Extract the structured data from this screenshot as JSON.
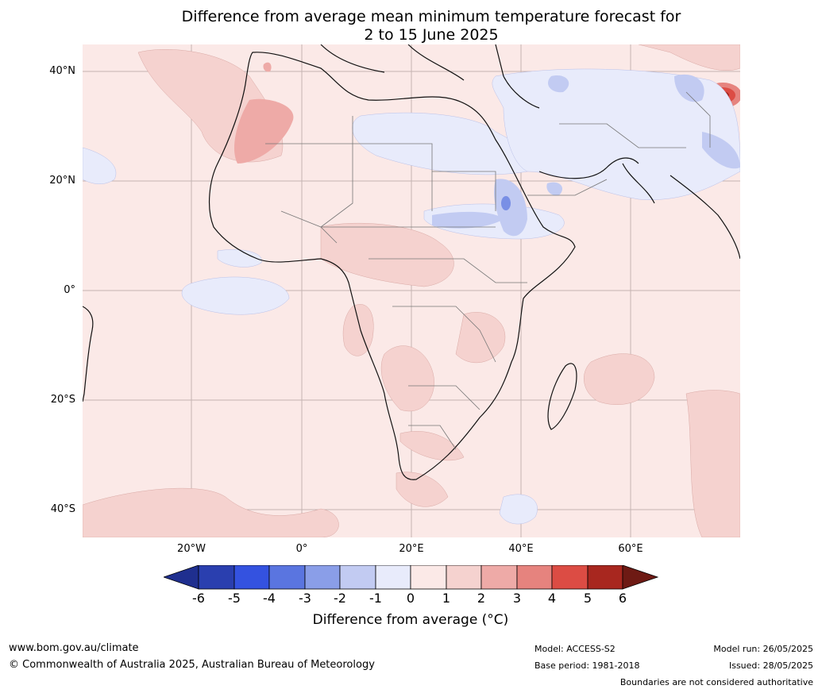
{
  "title_line1": "Difference from average mean minimum temperature forecast for",
  "title_line2": "2 to 15 June 2025",
  "lat_labels": [
    "40°N",
    "20°N",
    "0°",
    "20°S",
    "40°S"
  ],
  "lon_labels": [
    "20°W",
    "0°",
    "20°E",
    "40°E",
    "60°E"
  ],
  "colorbar": {
    "ticks": [
      "-6",
      "-5",
      "-4",
      "-3",
      "-2",
      "-1",
      "0",
      "1",
      "2",
      "3",
      "4",
      "5",
      "6"
    ],
    "label": "Difference from average ($^\\circ$C)",
    "label_display": "Difference from average (°C)",
    "colors": [
      "#1f2f8f",
      "#2a3faf",
      "#3452e0",
      "#5a75e0",
      "#8a9ee8",
      "#c2cbf2",
      "#e8ebfb",
      "#fbe9e7",
      "#f5d2cf",
      "#eeaaa7",
      "#e6837e",
      "#dc4c44",
      "#a8271f",
      "#6e1a14"
    ]
  },
  "footer": {
    "website": "www.bom.gov.au/climate",
    "copyright": "© Commonwealth of Australia 2025, Australian Bureau of Meteorology",
    "model": "Model: ACCESS-S2",
    "base_period": "Base period: 1981-2018",
    "model_run": "Model run: 26/05/2025",
    "issued": "Issued: 28/05/2025",
    "disclaimer": "Boundaries are not considered authoritative"
  }
}
